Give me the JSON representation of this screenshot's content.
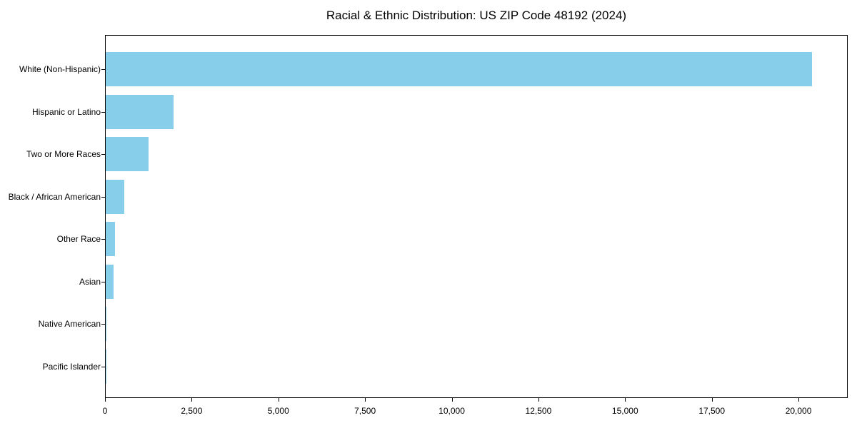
{
  "title": "Racial & Ethnic Distribution: US ZIP Code 48192 (2024)",
  "chart_data": {
    "type": "bar",
    "orientation": "horizontal",
    "title": "Racial & Ethnic Distribution: US ZIP Code 48192 (2024)",
    "categories": [
      "White (Non-Hispanic)",
      "Hispanic or Latino",
      "Two or More Races",
      "Black / African American",
      "Other Race",
      "Asian",
      "Native American",
      "Pacific Islander"
    ],
    "values": [
      20400,
      1960,
      1240,
      530,
      260,
      220,
      25,
      5
    ],
    "xlabel": "",
    "ylabel": "",
    "xlim": [
      0,
      21420
    ],
    "xticks": [
      0,
      2500,
      5000,
      7500,
      10000,
      12500,
      15000,
      17500,
      20000
    ],
    "xtick_labels": [
      "0",
      "2,500",
      "5,000",
      "7,500",
      "10,000",
      "12,500",
      "15,000",
      "17,500",
      "20,000"
    ],
    "bar_color": "#87CEEB",
    "grid": false,
    "legend_position": "none"
  }
}
